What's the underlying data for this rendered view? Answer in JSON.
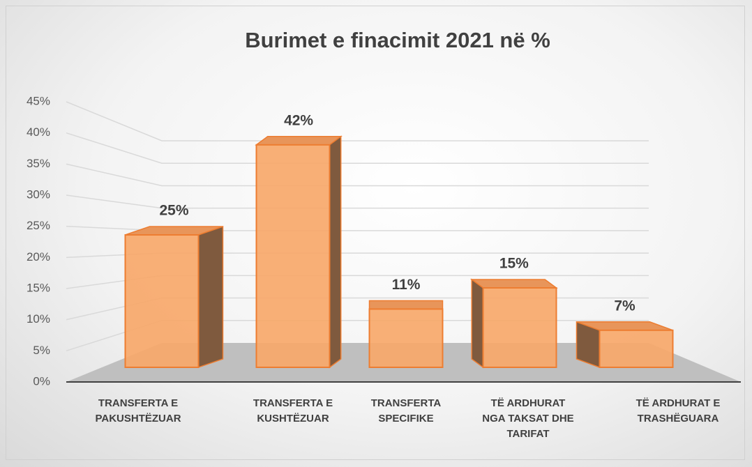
{
  "chart_data": {
    "type": "bar3d",
    "title": "Burimet e finacimit 2021 në %",
    "categories": [
      "TRANSFERTA E PAKUSHTËZUAR",
      "TRANSFERTA E KUSHTËZUAR",
      "TRANSFERTA SPECIFIKE",
      "TË ARDHURAT NGA TAKSAT DHE TARIFAT",
      "TË ARDHURAT E TRASHËGUARA"
    ],
    "values": [
      25,
      42,
      11,
      15,
      7
    ],
    "value_labels": [
      "25%",
      "42%",
      "11%",
      "15%",
      "7%"
    ],
    "color": "#f7a86a",
    "ylim": [
      0,
      45
    ],
    "yticks": [
      {
        "value": 0,
        "label": "0%"
      },
      {
        "value": 5,
        "label": "5%"
      },
      {
        "value": 10,
        "label": "10%"
      },
      {
        "value": 15,
        "label": "15%"
      },
      {
        "value": 20,
        "label": "20%"
      },
      {
        "value": 25,
        "label": "25%"
      },
      {
        "value": 30,
        "label": "30%"
      },
      {
        "value": 35,
        "label": "35%"
      },
      {
        "value": 40,
        "label": "40%"
      },
      {
        "value": 45,
        "label": "45%"
      }
    ],
    "grid": true
  }
}
